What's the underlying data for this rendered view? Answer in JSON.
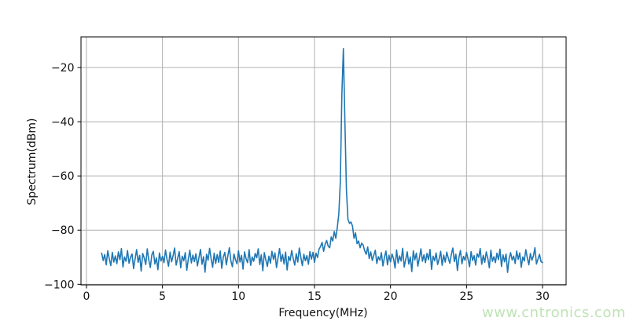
{
  "chart_data": {
    "type": "line",
    "title": "",
    "xlabel": "Frequency(MHz)",
    "ylabel": "Spectrum(dBm)",
    "xlim": [
      -0.36,
      31.55
    ],
    "ylim": [
      -100.2,
      -8.7
    ],
    "xticks": [
      0,
      5,
      10,
      15,
      20,
      25,
      30
    ],
    "yticks": [
      -100,
      -80,
      -60,
      -40,
      -20
    ],
    "grid": true,
    "grid_color": "#b0b0b0",
    "line_color": "#1f77b4",
    "peak": {
      "frequency_mhz": 16.9,
      "level_dbm": -13.0
    },
    "noise_floor_dbm": -90,
    "series": [
      {
        "name": "spectrum",
        "x_start": 1.0,
        "x_step": 0.1,
        "values": [
          -88.5,
          -91.2,
          -89.0,
          -92.8,
          -87.6,
          -90.5,
          -93.1,
          -88.2,
          -91.8,
          -89.5,
          -92.4,
          -88.0,
          -90.9,
          -86.8,
          -93.6,
          -89.9,
          -91.5,
          -87.5,
          -92.2,
          -90.0,
          -88.8,
          -94.2,
          -90.6,
          -87.2,
          -91.9,
          -89.3,
          -95.1,
          -88.6,
          -90.3,
          -92.7,
          -86.9,
          -91.0,
          -93.8,
          -89.1,
          -87.8,
          -92.5,
          -90.2,
          -94.6,
          -88.4,
          -91.4,
          -89.7,
          -92.0,
          -87.3,
          -90.8,
          -93.3,
          -88.1,
          -91.7,
          -89.4,
          -86.6,
          -92.9,
          -90.4,
          -87.9,
          -93.9,
          -89.6,
          -91.3,
          -88.3,
          -94.8,
          -90.7,
          -87.4,
          -92.1,
          -89.2,
          -91.6,
          -88.7,
          -93.2,
          -90.1,
          -87.1,
          -92.6,
          -89.8,
          -95.5,
          -88.9,
          -91.1,
          -86.7,
          -90.5,
          -93.7,
          -88.5,
          -92.3,
          -89.0,
          -91.9,
          -87.7,
          -94.1,
          -90.0,
          -88.2,
          -92.8,
          -89.5,
          -86.5,
          -91.4,
          -93.5,
          -88.8,
          -90.9,
          -92.4,
          -87.6,
          -91.8,
          -89.3,
          -94.4,
          -88.0,
          -90.6,
          -92.0,
          -87.2,
          -93.0,
          -89.9,
          -91.5,
          -88.6,
          -90.2,
          -86.9,
          -92.7,
          -89.1,
          -95.0,
          -88.3,
          -91.0,
          -93.4,
          -89.6,
          -92.2,
          -87.8,
          -90.8,
          -88.4,
          -93.8,
          -90.3,
          -86.8,
          -91.6,
          -89.0,
          -92.5,
          -88.1,
          -94.7,
          -89.7,
          -91.2,
          -87.5,
          -90.4,
          -92.9,
          -88.7,
          -91.8,
          -86.6,
          -90.0,
          -93.1,
          -88.9,
          -91.3,
          -89.4,
          -92.6,
          -87.9,
          -90.7,
          -88.2,
          -91.9,
          -88.5,
          -90.1,
          -87.0,
          -86.0,
          -84.5,
          -87.8,
          -85.2,
          -83.8,
          -85.9,
          -86.5,
          -82.5,
          -84.0,
          -80.5,
          -83.0,
          -79.0,
          -74.0,
          -62.0,
          -30.0,
          -13.0,
          -40.0,
          -65.0,
          -76.0,
          -77.5,
          -77.0,
          -78.5,
          -83.0,
          -81.0,
          -85.0,
          -84.0,
          -86.5,
          -84.8,
          -85.5,
          -87.6,
          -88.9,
          -86.2,
          -90.5,
          -88.0,
          -91.2,
          -89.3,
          -87.4,
          -92.3,
          -89.8,
          -91.1,
          -88.3,
          -93.2,
          -90.0,
          -87.7,
          -92.8,
          -89.2,
          -91.7,
          -88.8,
          -90.5,
          -94.0,
          -87.3,
          -92.1,
          -89.5,
          -91.4,
          -86.7,
          -93.6,
          -90.8,
          -88.0,
          -92.5,
          -89.9,
          -95.3,
          -87.6,
          -91.0,
          -88.5,
          -93.3,
          -90.2,
          -86.9,
          -91.5,
          -89.1,
          -92.0,
          -88.6,
          -90.9,
          -87.1,
          -94.5,
          -89.6,
          -91.3,
          -88.4,
          -92.7,
          -90.6,
          -87.8,
          -93.0,
          -89.2,
          -91.8,
          -88.1,
          -90.3,
          -92.2,
          -89.0,
          -86.6,
          -91.6,
          -88.9,
          -94.9,
          -90.1,
          -87.5,
          -92.4,
          -89.7,
          -91.1,
          -88.2,
          -90.7,
          -93.5,
          -87.9,
          -91.2,
          -89.4,
          -92.9,
          -88.7,
          -90.0,
          -86.8,
          -92.6,
          -89.3,
          -91.9,
          -88.0,
          -90.4,
          -93.9,
          -87.4,
          -91.5,
          -89.8,
          -92.0,
          -88.5,
          -90.9,
          -87.0,
          -93.4,
          -89.1,
          -91.7,
          -88.8,
          -95.6,
          -90.5,
          -88.3,
          -91.0,
          -89.6,
          -92.3,
          -87.7,
          -90.8,
          -88.4,
          -93.7,
          -89.9,
          -91.4,
          -87.2,
          -90.2,
          -92.8,
          -88.6,
          -91.1,
          -89.5,
          -86.5,
          -92.5,
          -90.7,
          -88.9,
          -91.6,
          -92.0
        ]
      }
    ]
  },
  "watermark": {
    "text": "www.cntronics.com",
    "color": "#bfe3b6"
  }
}
